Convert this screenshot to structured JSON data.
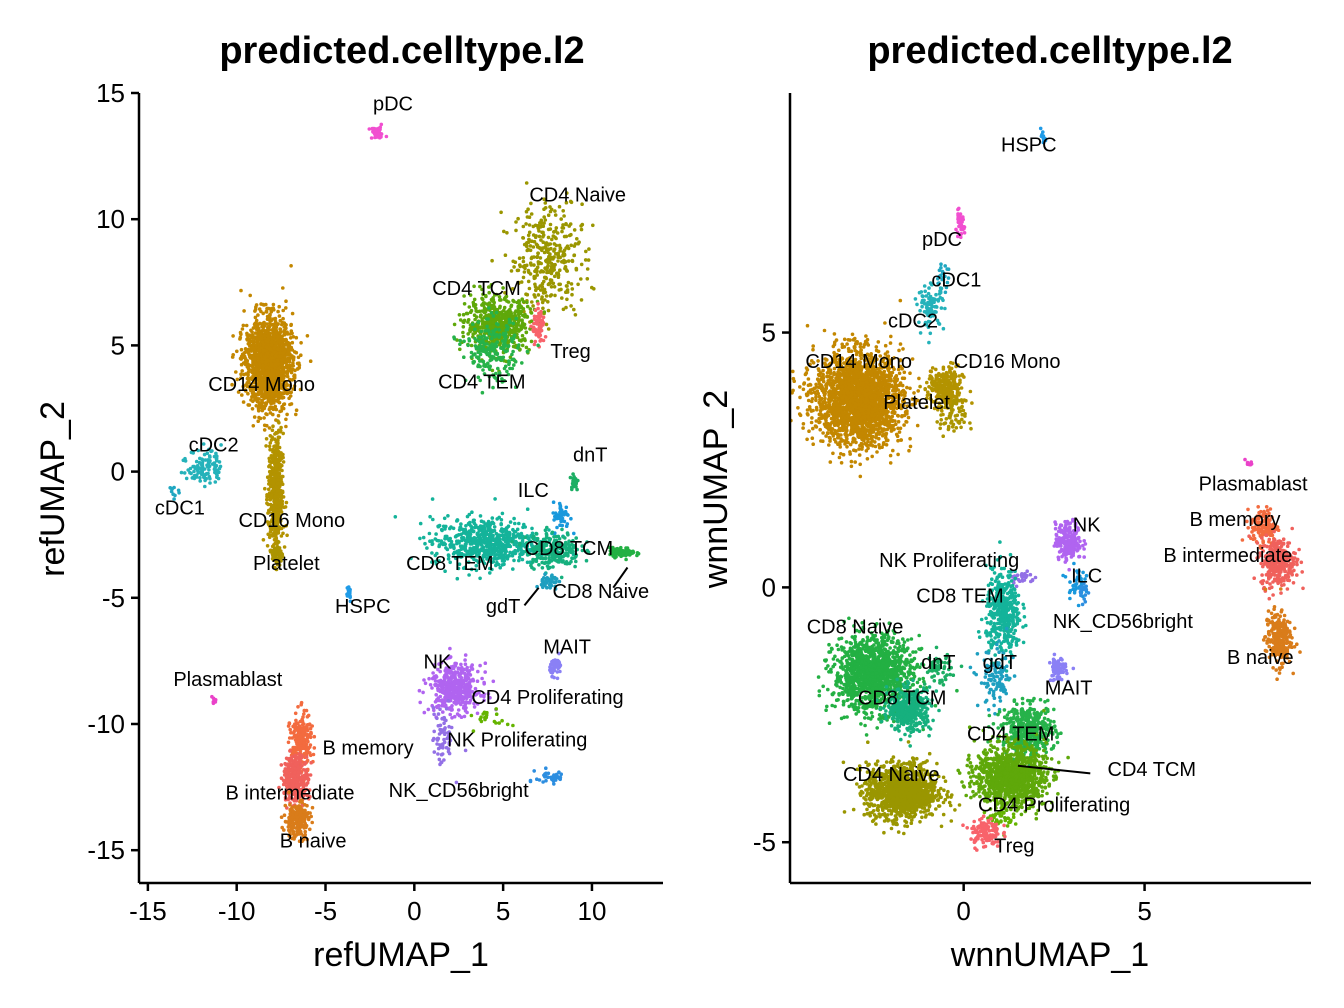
{
  "chart_data": [
    {
      "type": "scatter",
      "title": "predicted.celltype.l2",
      "xlabel": "refUMAP_1",
      "ylabel": "refUMAP_2",
      "xlim": [
        -15.5,
        14
      ],
      "ylim": [
        -16.3,
        15
      ],
      "x_ticks": [
        -15,
        -10,
        -5,
        0,
        5,
        10
      ],
      "y_ticks": [
        -15,
        -10,
        -5,
        0,
        5,
        10,
        15
      ],
      "grid": false,
      "legend": "none",
      "clusters": [
        {
          "name": "pDC",
          "color": "#f14fd0",
          "center": [
            -2.1,
            13.4
          ],
          "spread": [
            0.4,
            0.2
          ],
          "n": 40,
          "label_pos": [
            -1.2,
            14.3
          ]
        },
        {
          "name": "CD4 Naive",
          "color": "#9a9600",
          "center": [
            7.5,
            8.5
          ],
          "spread": [
            1.6,
            1.8
          ],
          "n": 360,
          "label_pos": [
            9.2,
            10.7
          ]
        },
        {
          "name": "CD4 TCM",
          "color": "#5fa80a",
          "center": [
            4.7,
            5.8
          ],
          "spread": [
            1.5,
            0.9
          ],
          "n": 620,
          "label_pos": [
            3.5,
            7
          ]
        },
        {
          "name": "Treg",
          "color": "#f8636b",
          "center": [
            7.0,
            5.7
          ],
          "spread": [
            0.3,
            0.6
          ],
          "n": 70,
          "label_pos": [
            8.8,
            4.5
          ]
        },
        {
          "name": "CD4 TEM",
          "color": "#26b24a",
          "center": [
            4.4,
            4.8
          ],
          "spread": [
            1.2,
            1.0
          ],
          "n": 220,
          "label_pos": [
            3.8,
            3.3
          ]
        },
        {
          "name": "CD14 Mono",
          "color": "#c38700",
          "center": [
            -8.2,
            4.3
          ],
          "spread": [
            1.1,
            1.5
          ],
          "n": 1500,
          "label_pos": [
            -8.6,
            3.2
          ]
        },
        {
          "name": "cDC2",
          "color": "#25b2ba",
          "center": [
            -11.8,
            0.2
          ],
          "spread": [
            0.8,
            0.6
          ],
          "n": 110,
          "label_pos": [
            -11.3,
            0.8
          ]
        },
        {
          "name": "cDC1",
          "color": "#20a7c1",
          "center": [
            -13.6,
            -0.7
          ],
          "spread": [
            0.3,
            0.3
          ],
          "n": 10,
          "label_pos": [
            -13.2,
            -1.7
          ]
        },
        {
          "name": "CD16 Mono",
          "color": "#b39300",
          "center": [
            -7.8,
            -0.9
          ],
          "spread": [
            0.35,
            2.0
          ],
          "n": 460,
          "label_pos": [
            -6.9,
            -2.2
          ]
        },
        {
          "name": "Platelet",
          "color": "#aa9400",
          "center": [
            -7.7,
            -3.3
          ],
          "spread": [
            0.25,
            0.4
          ],
          "n": 50,
          "label_pos": [
            -7.2,
            -3.9
          ]
        },
        {
          "name": "HSPC",
          "color": "#1f9be7",
          "center": [
            -3.7,
            -4.8
          ],
          "spread": [
            0.15,
            0.3
          ],
          "n": 20,
          "label_pos": [
            -2.9,
            -5.6
          ]
        },
        {
          "name": "dnT",
          "color": "#1cae63",
          "center": [
            9.0,
            -0.4
          ],
          "spread": [
            0.2,
            0.3
          ],
          "n": 25,
          "label_pos": [
            9.9,
            0.4
          ]
        },
        {
          "name": "ILC",
          "color": "#1898dc",
          "center": [
            8.3,
            -1.8
          ],
          "spread": [
            0.4,
            0.5
          ],
          "n": 50,
          "label_pos": [
            6.7,
            -1.0
          ]
        },
        {
          "name": "CD8 TEM",
          "color": "#14b39a",
          "center": [
            4.0,
            -2.8
          ],
          "spread": [
            2.5,
            0.8
          ],
          "n": 620,
          "label_pos": [
            2.0,
            -3.9
          ]
        },
        {
          "name": "CD8 TCM",
          "color": "#16b07e",
          "center": [
            7.8,
            -3.1
          ],
          "spread": [
            1.3,
            0.6
          ],
          "n": 220,
          "label_pos": [
            8.7,
            -3.3
          ]
        },
        {
          "name": "CD8 Naive",
          "color": "#23b043",
          "center": [
            11.7,
            -3.2
          ],
          "spread": [
            0.6,
            0.15
          ],
          "n": 90,
          "label_pos": [
            10.5,
            -5.0
          ]
        },
        {
          "name": "gdT",
          "color": "#1e9fc0",
          "center": [
            7.6,
            -4.4
          ],
          "spread": [
            0.4,
            0.3
          ],
          "n": 40,
          "label_pos": [
            5.0,
            -5.6
          ]
        },
        {
          "name": "MAIT",
          "color": "#8a80f5",
          "center": [
            8.0,
            -7.7
          ],
          "spread": [
            0.3,
            0.3
          ],
          "n": 50,
          "label_pos": [
            8.6,
            -7.2
          ]
        },
        {
          "name": "NK",
          "color": "#b064f0",
          "center": [
            2.3,
            -8.6
          ],
          "spread": [
            1.2,
            0.8
          ],
          "n": 420,
          "label_pos": [
            1.3,
            -7.8
          ]
        },
        {
          "name": "NK Proliferating",
          "color": "#9370e6",
          "center": [
            1.6,
            -10.5
          ],
          "spread": [
            0.5,
            1.0
          ],
          "n": 70,
          "label_pos": [
            5.8,
            -10.9
          ]
        },
        {
          "name": "CD4 Proliferating",
          "color": "#65b400",
          "center": [
            4.4,
            -9.8
          ],
          "spread": [
            0.8,
            0.3
          ],
          "n": 20,
          "label_pos": [
            7.5,
            -9.2
          ]
        },
        {
          "name": "NK_CD56bright",
          "color": "#2d8ee0",
          "center": [
            7.7,
            -12.1
          ],
          "spread": [
            0.7,
            0.25
          ],
          "n": 40,
          "label_pos": [
            2.5,
            -12.9
          ]
        },
        {
          "name": "Plasmablast",
          "color": "#ea42c9",
          "center": [
            -11.3,
            -9.1
          ],
          "spread": [
            0.15,
            0.15
          ],
          "n": 10,
          "label_pos": [
            -10.5,
            -8.5
          ]
        },
        {
          "name": "B memory",
          "color": "#f36b3f",
          "center": [
            -6.4,
            -10.8
          ],
          "spread": [
            0.5,
            1.0
          ],
          "n": 220,
          "label_pos": [
            -2.6,
            -11.2
          ]
        },
        {
          "name": "B intermediate",
          "color": "#f0615c",
          "center": [
            -6.7,
            -12.2
          ],
          "spread": [
            0.6,
            0.8
          ],
          "n": 320,
          "label_pos": [
            -7.0,
            -13.0
          ]
        },
        {
          "name": "B naive",
          "color": "#d97c1a",
          "center": [
            -6.6,
            -13.8
          ],
          "spread": [
            0.6,
            0.6
          ],
          "n": 200,
          "label_pos": [
            -5.7,
            -14.9
          ]
        }
      ]
    },
    {
      "type": "scatter",
      "title": "predicted.celltype.l2",
      "xlabel": "wnnUMAP_1",
      "ylabel": "wnnUMAP_2",
      "xlim": [
        -4.8,
        9.6
      ],
      "ylim": [
        -5.8,
        9.7
      ],
      "x_ticks": [
        0,
        5
      ],
      "y_ticks": [
        -5,
        0,
        5
      ],
      "grid": false,
      "legend": "none",
      "clusters": [
        {
          "name": "HSPC",
          "color": "#1f9be7",
          "center": [
            2.2,
            8.8
          ],
          "spread": [
            0.08,
            0.12
          ],
          "n": 15,
          "label_pos": [
            1.8,
            8.55
          ]
        },
        {
          "name": "pDC",
          "color": "#f14fd0",
          "center": [
            -0.1,
            7.1
          ],
          "spread": [
            0.1,
            0.2
          ],
          "n": 40,
          "label_pos": [
            -0.6,
            6.7
          ]
        },
        {
          "name": "cDC1",
          "color": "#20a7c1",
          "center": [
            -0.6,
            6.1
          ],
          "spread": [
            0.15,
            0.2
          ],
          "n": 25,
          "label_pos": [
            -0.2,
            5.9
          ]
        },
        {
          "name": "cDC2",
          "color": "#25b2ba",
          "center": [
            -0.9,
            5.5
          ],
          "spread": [
            0.3,
            0.35
          ],
          "n": 90,
          "label_pos": [
            -1.4,
            5.1
          ]
        },
        {
          "name": "CD14 Mono",
          "color": "#c38700",
          "center": [
            -2.9,
            3.7
          ],
          "spread": [
            1.0,
            0.75
          ],
          "n": 2200,
          "label_pos": [
            -2.9,
            4.3
          ]
        },
        {
          "name": "CD16 Mono",
          "color": "#b39300",
          "center": [
            -0.5,
            3.9
          ],
          "spread": [
            0.4,
            0.35
          ],
          "n": 260,
          "label_pos": [
            1.2,
            4.3
          ]
        },
        {
          "name": "Platelet",
          "color": "#aa9400",
          "center": [
            -0.3,
            3.3
          ],
          "spread": [
            0.3,
            0.3
          ],
          "n": 60,
          "label_pos": [
            -1.3,
            3.5
          ]
        },
        {
          "name": "Plasmablast",
          "color": "#ea42c9",
          "center": [
            7.9,
            2.45
          ],
          "spread": [
            0.08,
            0.06
          ],
          "n": 8,
          "label_pos": [
            8.0,
            1.9
          ]
        },
        {
          "name": "B memory",
          "color": "#f36b3f",
          "center": [
            8.3,
            1.2
          ],
          "spread": [
            0.3,
            0.3
          ],
          "n": 150,
          "label_pos": [
            7.5,
            1.2
          ]
        },
        {
          "name": "B intermediate",
          "color": "#f0615c",
          "center": [
            8.7,
            0.5
          ],
          "spread": [
            0.4,
            0.4
          ],
          "n": 320,
          "label_pos": [
            7.3,
            0.5
          ]
        },
        {
          "name": "B naive",
          "color": "#d97c1a",
          "center": [
            8.7,
            -1.0
          ],
          "spread": [
            0.3,
            0.45
          ],
          "n": 240,
          "label_pos": [
            8.2,
            -1.5
          ]
        },
        {
          "name": "NK",
          "color": "#b064f0",
          "center": [
            2.9,
            0.9
          ],
          "spread": [
            0.3,
            0.3
          ],
          "n": 220,
          "label_pos": [
            3.4,
            1.1
          ]
        },
        {
          "name": "NK Proliferating",
          "color": "#9370e6",
          "center": [
            1.6,
            0.2
          ],
          "spread": [
            0.3,
            0.15
          ],
          "n": 30,
          "label_pos": [
            -0.4,
            0.4
          ]
        },
        {
          "name": "ILC",
          "color": "#1898dc",
          "center": [
            3.1,
            0.1
          ],
          "spread": [
            0.2,
            0.25
          ],
          "n": 40,
          "label_pos": [
            3.4,
            0.1
          ]
        },
        {
          "name": "NK_CD56bright",
          "color": "#2d8ee0",
          "center": [
            3.3,
            -0.1
          ],
          "spread": [
            0.1,
            0.2
          ],
          "n": 20,
          "label_pos": [
            4.4,
            -0.8
          ]
        },
        {
          "name": "CD8 TEM",
          "color": "#14b39a",
          "center": [
            1.1,
            -0.5
          ],
          "spread": [
            0.4,
            0.7
          ],
          "n": 420,
          "label_pos": [
            -0.1,
            -0.3
          ]
        },
        {
          "name": "CD8 Naive",
          "color": "#23b043",
          "center": [
            -2.5,
            -1.7
          ],
          "spread": [
            0.9,
            0.6
          ],
          "n": 1300,
          "label_pos": [
            -3.0,
            -0.9
          ]
        },
        {
          "name": "CD8 TCM",
          "color": "#16b07e",
          "center": [
            -1.5,
            -2.4
          ],
          "spread": [
            0.5,
            0.35
          ],
          "n": 400,
          "label_pos": [
            -1.7,
            -2.3
          ]
        },
        {
          "name": "dnT",
          "color": "#1cae63",
          "center": [
            -0.7,
            -1.6
          ],
          "spread": [
            0.3,
            0.25
          ],
          "n": 60,
          "label_pos": [
            -0.7,
            -1.6
          ]
        },
        {
          "name": "gdT",
          "color": "#1e9fc0",
          "center": [
            0.9,
            -1.8
          ],
          "spread": [
            0.4,
            0.5
          ],
          "n": 110,
          "label_pos": [
            1.0,
            -1.6
          ]
        },
        {
          "name": "MAIT",
          "color": "#8a80f5",
          "center": [
            2.6,
            -1.6
          ],
          "spread": [
            0.2,
            0.2
          ],
          "n": 70,
          "label_pos": [
            2.9,
            -2.1
          ]
        },
        {
          "name": "CD4 TEM",
          "color": "#26b24a",
          "center": [
            1.8,
            -2.8
          ],
          "spread": [
            0.6,
            0.4
          ],
          "n": 440,
          "label_pos": [
            1.3,
            -3.0
          ]
        },
        {
          "name": "CD4 TCM",
          "color": "#5fa80a",
          "center": [
            1.3,
            -3.7
          ],
          "spread": [
            0.8,
            0.5
          ],
          "n": 1100,
          "label_pos": [
            5.2,
            -3.7
          ]
        },
        {
          "name": "CD4 Naive",
          "color": "#9a9600",
          "center": [
            -1.7,
            -4.0
          ],
          "spread": [
            0.8,
            0.45
          ],
          "n": 1250,
          "label_pos": [
            -2.0,
            -3.8
          ]
        },
        {
          "name": "CD4 Proliferating",
          "color": "#65b400",
          "center": [
            1.0,
            -4.5
          ],
          "spread": [
            0.3,
            0.2
          ],
          "n": 40,
          "label_pos": [
            2.5,
            -4.4
          ]
        },
        {
          "name": "Treg",
          "color": "#f8636b",
          "center": [
            0.6,
            -4.8
          ],
          "spread": [
            0.35,
            0.25
          ],
          "n": 120,
          "label_pos": [
            1.4,
            -5.2
          ]
        }
      ]
    }
  ],
  "leader_lines": [
    {
      "panel": 0,
      "from": [
        12.0,
        -3.8
      ],
      "to": [
        11.2,
        -4.6
      ]
    },
    {
      "panel": 0,
      "from": [
        7.0,
        -4.6
      ],
      "to": [
        6.2,
        -5.3
      ]
    },
    {
      "panel": 1,
      "from": [
        1.5,
        -3.5
      ],
      "to": [
        3.5,
        -3.65
      ]
    }
  ]
}
